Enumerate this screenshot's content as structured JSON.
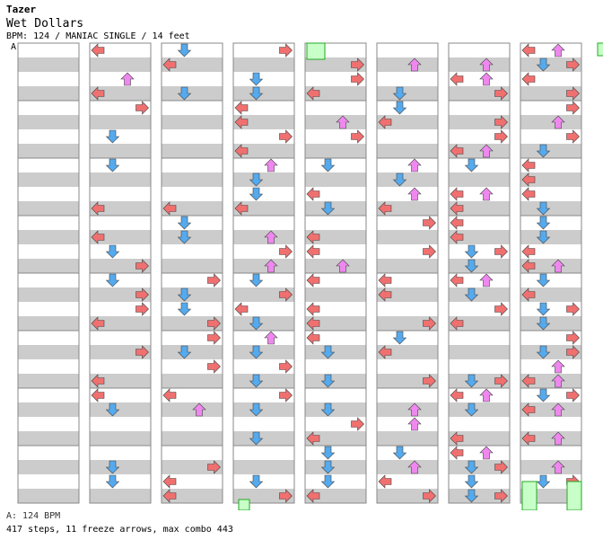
{
  "song": {
    "artist": "Tazer",
    "title": "Wet Dollars",
    "meta": "BPM: 124 / MANIAC SINGLE / 14 feet"
  },
  "section_marker": "A",
  "legend": "A: 124 BPM",
  "stats": "417 steps, 11 freeze arrows, max combo 443",
  "colors": {
    "band": "#cccccc",
    "left": "#f07070",
    "down": "#55aaee",
    "up": "#ee88ee",
    "right": "#f07070",
    "freeze": "#c8ffc8"
  }
}
